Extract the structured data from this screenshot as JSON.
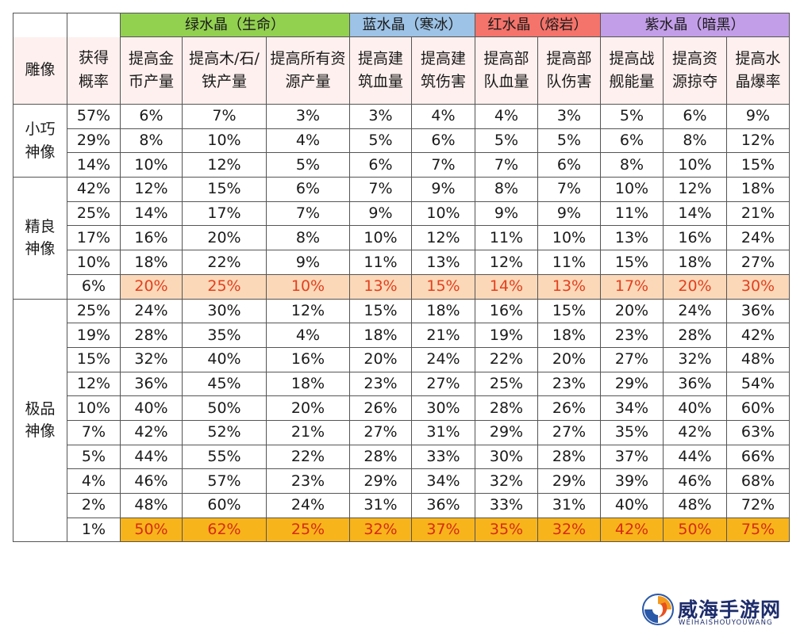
{
  "table": {
    "header": {
      "statue_label": "雕像",
      "prob_label": "获得概率",
      "groups": [
        {
          "label": "绿水晶（生命）",
          "color": "#92d050",
          "span": 3
        },
        {
          "label": "蓝水晶（寒冰）",
          "color": "#9dc3e6",
          "span": 2
        },
        {
          "label": "红水晶（熔岩）",
          "color": "#f4736b",
          "span": 2
        },
        {
          "label": "紫水晶（暗黑）",
          "color": "#c39ee8",
          "span": 3
        }
      ],
      "subs": [
        "提高金币产量",
        "提高木/石/铁产量",
        "提高所有资源产量",
        "提高建筑血量",
        "提高建筑伤害",
        "提高部队血量",
        "提高部队伤害",
        "提高战舰能量",
        "提高资源掠夺",
        "提高水晶爆率"
      ]
    },
    "sections": [
      {
        "name": "小巧神像",
        "rows": [
          {
            "prob": "57%",
            "vals": [
              "6%",
              "7%",
              "3%",
              "3%",
              "4%",
              "4%",
              "3%",
              "5%",
              "6%",
              "9%"
            ]
          },
          {
            "prob": "29%",
            "vals": [
              "8%",
              "10%",
              "4%",
              "5%",
              "6%",
              "5%",
              "5%",
              "6%",
              "8%",
              "12%"
            ]
          },
          {
            "prob": "14%",
            "vals": [
              "10%",
              "12%",
              "5%",
              "6%",
              "7%",
              "7%",
              "6%",
              "8%",
              "10%",
              "15%"
            ]
          }
        ]
      },
      {
        "name": "精良神像",
        "rows": [
          {
            "prob": "42%",
            "vals": [
              "12%",
              "15%",
              "6%",
              "7%",
              "9%",
              "8%",
              "7%",
              "10%",
              "12%",
              "18%"
            ]
          },
          {
            "prob": "25%",
            "vals": [
              "14%",
              "17%",
              "7%",
              "9%",
              "10%",
              "9%",
              "9%",
              "11%",
              "14%",
              "21%"
            ]
          },
          {
            "prob": "17%",
            "vals": [
              "16%",
              "20%",
              "8%",
              "10%",
              "12%",
              "11%",
              "10%",
              "13%",
              "16%",
              "24%"
            ]
          },
          {
            "prob": "10%",
            "vals": [
              "18%",
              "22%",
              "9%",
              "11%",
              "13%",
              "12%",
              "11%",
              "15%",
              "18%",
              "27%"
            ]
          },
          {
            "prob": "6%",
            "vals": [
              "20%",
              "25%",
              "10%",
              "13%",
              "15%",
              "14%",
              "13%",
              "17%",
              "20%",
              "30%"
            ],
            "highlight": "light"
          }
        ]
      },
      {
        "name": "极品神像",
        "rows": [
          {
            "prob": "25%",
            "vals": [
              "24%",
              "30%",
              "12%",
              "15%",
              "18%",
              "16%",
              "15%",
              "20%",
              "24%",
              "36%"
            ]
          },
          {
            "prob": "19%",
            "vals": [
              "28%",
              "35%",
              "4%",
              "18%",
              "21%",
              "19%",
              "18%",
              "23%",
              "28%",
              "42%"
            ]
          },
          {
            "prob": "15%",
            "vals": [
              "32%",
              "40%",
              "16%",
              "20%",
              "24%",
              "22%",
              "20%",
              "27%",
              "32%",
              "48%"
            ]
          },
          {
            "prob": "12%",
            "vals": [
              "36%",
              "45%",
              "18%",
              "23%",
              "27%",
              "25%",
              "23%",
              "29%",
              "36%",
              "54%"
            ]
          },
          {
            "prob": "10%",
            "vals": [
              "40%",
              "50%",
              "20%",
              "26%",
              "30%",
              "28%",
              "26%",
              "34%",
              "40%",
              "60%"
            ]
          },
          {
            "prob": "7%",
            "vals": [
              "42%",
              "52%",
              "21%",
              "27%",
              "31%",
              "29%",
              "27%",
              "35%",
              "42%",
              "63%"
            ]
          },
          {
            "prob": "5%",
            "vals": [
              "44%",
              "55%",
              "22%",
              "28%",
              "33%",
              "30%",
              "28%",
              "37%",
              "44%",
              "66%"
            ]
          },
          {
            "prob": "4%",
            "vals": [
              "46%",
              "57%",
              "23%",
              "29%",
              "34%",
              "32%",
              "29%",
              "39%",
              "46%",
              "68%"
            ]
          },
          {
            "prob": "2%",
            "vals": [
              "48%",
              "60%",
              "24%",
              "31%",
              "36%",
              "33%",
              "31%",
              "40%",
              "48%",
              "72%"
            ]
          },
          {
            "prob": "1%",
            "vals": [
              "50%",
              "62%",
              "25%",
              "32%",
              "37%",
              "35%",
              "32%",
              "42%",
              "50%",
              "75%"
            ],
            "highlight": "strong"
          }
        ]
      }
    ]
  },
  "watermark": {
    "title": "威海手游网",
    "subtitle": "WEIHAISHOUYOUWANG"
  }
}
